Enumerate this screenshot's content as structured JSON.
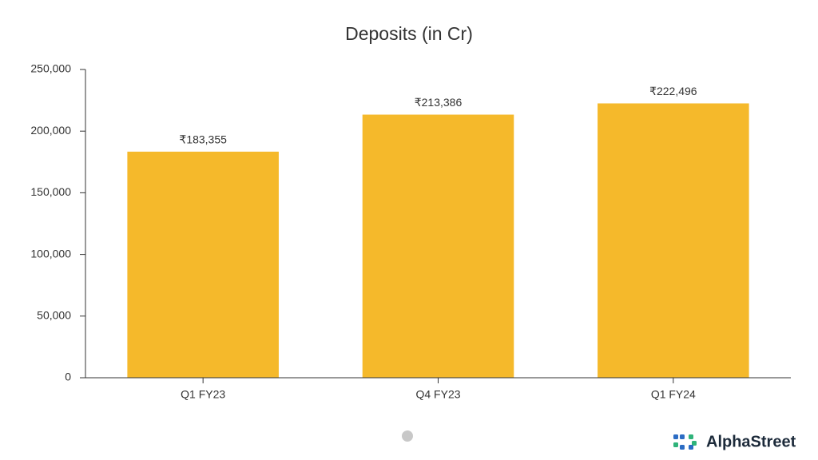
{
  "chart_data": {
    "type": "bar",
    "title": "Deposits (in Cr)",
    "categories": [
      "Q1 FY23",
      "Q4 FY23",
      "Q1 FY24"
    ],
    "values": [
      183355,
      213386,
      222496
    ],
    "value_labels": [
      "₹183,355",
      "₹213,386",
      "₹222,496"
    ],
    "color": "#f5b92b",
    "ylim": [
      0,
      250000
    ],
    "yticks": [
      0,
      {
        "value": 50000,
        "label": "50,000"
      },
      {
        "value": 100000,
        "label": "100,000"
      },
      {
        "value": 150000,
        "label": "150,000"
      },
      {
        "value": 200000,
        "label": "200,000"
      },
      {
        "value": 250000,
        "label": "250,000"
      }
    ],
    "grid": false
  },
  "logo": {
    "text": "AlphaStreet"
  }
}
